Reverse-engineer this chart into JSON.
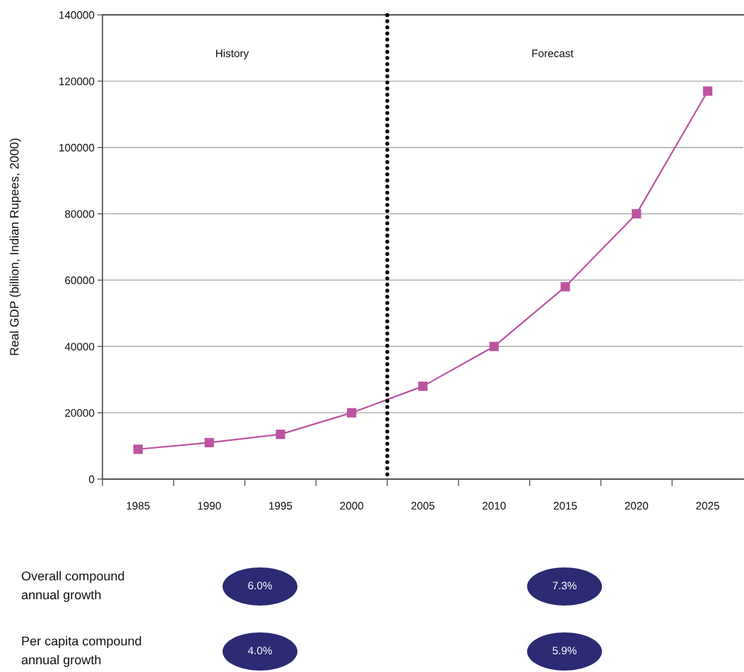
{
  "chart_data": [
    {
      "type": "line",
      "ylabel": "Real GDP (billion, Indian Rupees, 2000)",
      "x": [
        1985,
        1990,
        1995,
        2000,
        2005,
        2010,
        2015,
        2020,
        2025
      ],
      "values": [
        9000,
        11000,
        13500,
        20000,
        28000,
        40000,
        58000,
        80000,
        117000
      ],
      "color": "#bd54a1",
      "marker": "square",
      "line_style": "solid",
      "xlim": [
        1982.5,
        2027.5
      ],
      "xticks": [
        {
          "value": 1982.5,
          "label": null
        },
        1985,
        {
          "value": 1987.5,
          "label": null
        },
        1990,
        {
          "value": 1992.5,
          "label": null
        },
        1995,
        {
          "value": 1997.5,
          "label": null
        },
        2000,
        {
          "value": 2002.5,
          "label": null
        },
        2005,
        {
          "value": 2007.5,
          "label": null
        },
        2010,
        {
          "value": 2012.5,
          "label": null
        },
        2015,
        {
          "value": 2017.5,
          "label": null
        },
        2020,
        {
          "value": 2022.5,
          "label": null
        },
        2025
      ],
      "ylim": [
        0,
        140000
      ],
      "yticks": [
        0,
        20000,
        40000,
        60000,
        80000,
        100000,
        120000,
        140000
      ],
      "grid": "y",
      "ref_lines": [
        {
          "axis": "x",
          "value": 2002.5,
          "color": "#000000",
          "line_style": "dotted"
        }
      ],
      "annotations": [
        "History",
        "Forecast"
      ]
    },
    {
      "type": "other",
      "y_categories": [
        "Overall compound\nannual growth",
        "Per capita compound\nannual growth"
      ],
      "cell_labels": [
        [
          "6.0%",
          "7.3%"
        ],
        [
          "4.0%",
          "5.9%"
        ]
      ],
      "color": "#2b2a72"
    }
  ]
}
